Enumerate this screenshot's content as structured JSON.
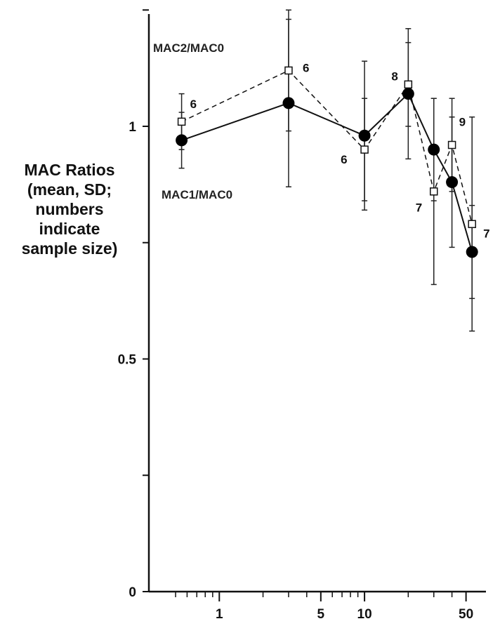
{
  "chart_data": {
    "type": "line",
    "ylabel_lines": [
      "MAC Ratios",
      "(mean, SD;",
      "numbers",
      "indicate",
      "sample size)"
    ],
    "xscale": "log",
    "xlim": [
      0.4,
      60
    ],
    "ylim": [
      0,
      1.25
    ],
    "yticks": [
      0,
      0.25,
      0.5,
      0.75,
      1.0,
      1.25
    ],
    "ytick_labels": {
      "0": "0",
      "0.5": "0.5",
      "1": "1"
    },
    "xticks_major": [
      1,
      5,
      10,
      50
    ],
    "xtick_labels": [
      "1",
      "5",
      "10",
      "50"
    ],
    "xticks_minor": [
      0.5,
      0.6,
      0.7,
      0.8,
      0.9,
      2,
      3,
      4,
      6,
      7,
      8,
      9,
      20,
      30,
      40
    ],
    "grid": false,
    "series": [
      {
        "name": "MAC2/MAC0",
        "marker": "open-square",
        "line": "dashed",
        "points": [
          {
            "x": 0.55,
            "y": 1.01,
            "sd": 0.06
          },
          {
            "x": 3.0,
            "y": 1.12,
            "sd": 0.13
          },
          {
            "x": 10.0,
            "y": 0.95,
            "sd": 0.11
          },
          {
            "x": 20.0,
            "y": 1.09,
            "sd": 0.09
          },
          {
            "x": 30.0,
            "y": 0.86,
            "sd": 0.2
          },
          {
            "x": 40.0,
            "y": 0.96,
            "sd": 0.1
          },
          {
            "x": 55.0,
            "y": 0.79,
            "sd": 0.23
          }
        ],
        "n_labels": [
          {
            "text": "6",
            "x": 0.55,
            "y": 1.03
          },
          {
            "text": "6",
            "x": 3.0,
            "y": 1.12
          },
          {
            "text": "6",
            "x": 10.0,
            "y": 0.95
          },
          {
            "text": "7",
            "x": 30.0,
            "y": 0.85
          },
          {
            "text": "9",
            "x": 40.0,
            "y": 0.98
          }
        ]
      },
      {
        "name": "MAC1/MAC0",
        "marker": "filled-circle",
        "line": "solid",
        "points": [
          {
            "x": 0.55,
            "y": 0.97,
            "sd": 0.06
          },
          {
            "x": 3.0,
            "y": 1.05,
            "sd": 0.18
          },
          {
            "x": 10.0,
            "y": 0.98,
            "sd": 0.16
          },
          {
            "x": 20.0,
            "y": 1.07,
            "sd": 0.14
          },
          {
            "x": 30.0,
            "y": 0.95,
            "sd": 0.11
          },
          {
            "x": 40.0,
            "y": 0.88,
            "sd": 0.14
          },
          {
            "x": 55.0,
            "y": 0.73,
            "sd": 0.1
          }
        ],
        "n_labels": [
          {
            "text": "8",
            "x": 20.0,
            "y": 1.09
          },
          {
            "text": "7",
            "x": 55.0,
            "y": 0.74
          }
        ]
      }
    ]
  }
}
